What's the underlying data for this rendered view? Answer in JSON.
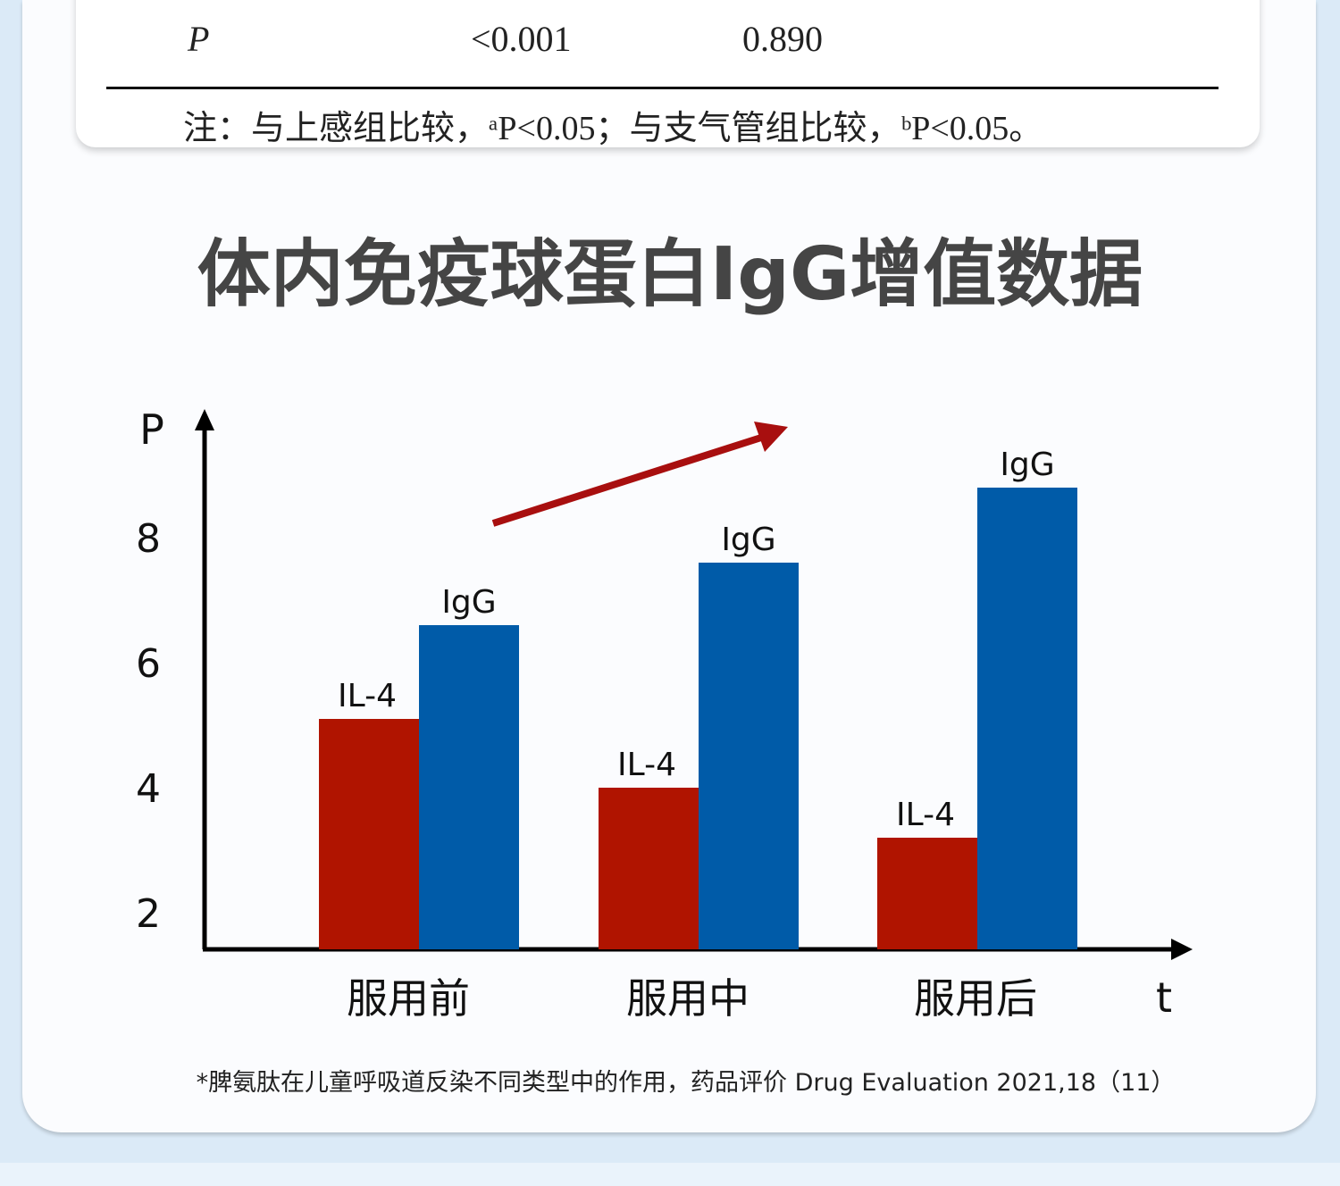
{
  "table": {
    "row_label": "P",
    "values": [
      "<0.001",
      "0.890"
    ],
    "note": "注：与上感组比较，ᵃP<0.05；与支气管组比较，ᵇP<0.05。"
  },
  "heading": "体内免疫球蛋白IgG增值数据",
  "chart_data": {
    "type": "bar",
    "title": "体内免疫球蛋白IgG增值数据",
    "ylabel": "P",
    "xlabel": "t",
    "categories": [
      "服用前",
      "服用中",
      "服用后"
    ],
    "series": [
      {
        "name": "IL-4",
        "color": "#b01400",
        "values": [
          5.1,
          4.0,
          3.2
        ]
      },
      {
        "name": "IgG",
        "color": "#005ba8",
        "values": [
          6.6,
          7.6,
          8.8
        ]
      }
    ],
    "yticks": [
      "2",
      "4",
      "6",
      "8"
    ],
    "ylim": [
      1.4,
      10
    ],
    "annotation": "trend-arrow-up",
    "grid": false
  },
  "footnote": "*脾氨肽在儿童呼吸道反染不同类型中的作用，药品评价 Drug Evaluation 2021,18（11）"
}
